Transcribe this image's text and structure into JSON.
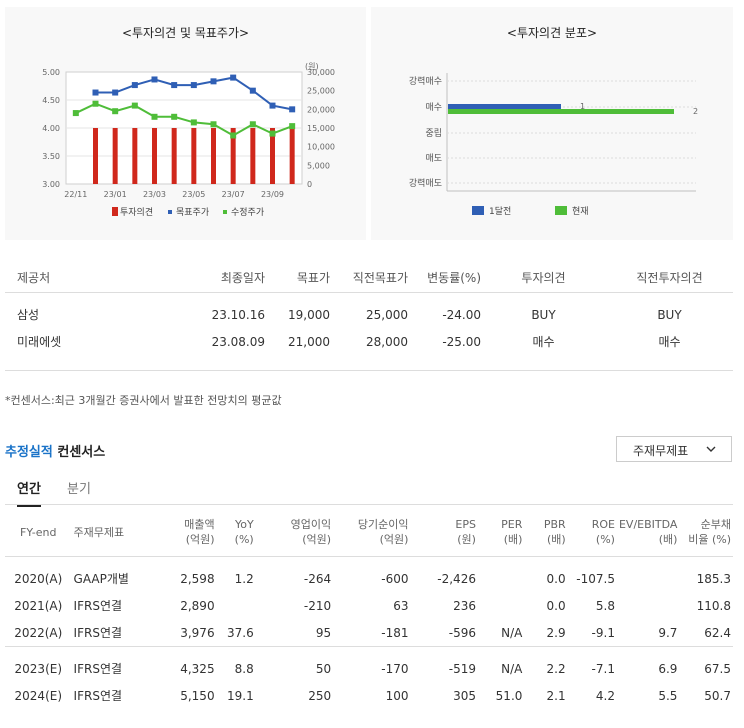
{
  "opinion_chart": {
    "title": "<투자의견 및 목표주가>",
    "y_left_ticks": [
      "5.00",
      "4.50",
      "4.00",
      "3.50",
      "3.00"
    ],
    "y_right_unit": "(원)",
    "y_right_ticks": [
      "30,000",
      "25,000",
      "20,000",
      "15,000",
      "10,000",
      "5,000",
      "0"
    ],
    "x_ticks": [
      "22/11",
      "23/01",
      "23/03",
      "23/05",
      "23/07",
      "23/09"
    ],
    "legend": [
      {
        "label": "투자의견",
        "color": "#d0281c"
      },
      {
        "label": "목표주가",
        "color": "#2f5fb5"
      },
      {
        "label": "수정주가",
        "color": "#4fbd39"
      }
    ]
  },
  "distribution_chart": {
    "title": "<투자의견 분포>",
    "categories": [
      "강력매수",
      "매수",
      "중립",
      "매도",
      "강력매도"
    ],
    "legend": [
      {
        "label": "1달전",
        "color": "#2f5fb5"
      },
      {
        "label": "현재",
        "color": "#4fbd39"
      }
    ],
    "bar_labels": [
      "1",
      "2"
    ]
  },
  "chart_data": [
    {
      "type": "bar",
      "title": "<투자의견 및 목표주가>",
      "x_ticks": [
        "22/11",
        "23/01",
        "23/03",
        "23/05",
        "23/07",
        "23/09"
      ],
      "ylim_left": [
        3.0,
        5.0
      ],
      "ylim_right": [
        0,
        30000
      ],
      "series": [
        {
          "name": "투자의견",
          "type": "bar",
          "axis": "left",
          "values": [
            null,
            4,
            4,
            4,
            4,
            4,
            4,
            4,
            4,
            4,
            4,
            4
          ]
        },
        {
          "name": "목표주가",
          "type": "line",
          "axis": "right",
          "values": [
            null,
            24500,
            24500,
            26500,
            28000,
            26500,
            26500,
            27500,
            28500,
            25000,
            21000,
            20000
          ]
        },
        {
          "name": "수정주가",
          "type": "line",
          "axis": "right",
          "values": [
            19000,
            21500,
            19500,
            21000,
            18000,
            18000,
            16500,
            16000,
            13000,
            16000,
            13500,
            15500
          ]
        }
      ]
    },
    {
      "type": "bar",
      "title": "<투자의견 분포>",
      "categories": [
        "강력매수",
        "매수",
        "중립",
        "매도",
        "강력매도"
      ],
      "series": [
        {
          "name": "1달전",
          "values": [
            0,
            1,
            0,
            0,
            0
          ]
        },
        {
          "name": "현재",
          "values": [
            0,
            2,
            0,
            0,
            0
          ]
        }
      ]
    }
  ],
  "opinions": {
    "headers": [
      "제공처",
      "최종일자",
      "목표가",
      "직전목표가",
      "변동률(%)",
      "투자의견",
      "직전투자의견"
    ],
    "rows": [
      [
        "삼성",
        "23.10.16",
        "19,000",
        "25,000",
        "-24.00",
        "BUY",
        "BUY"
      ],
      [
        "미래에셋",
        "23.08.09",
        "21,000",
        "28,000",
        "-25.00",
        "매수",
        "매수"
      ]
    ]
  },
  "note": "*컨센서스:최근 3개월간 증권사에서 발표한 전망치의 평균값",
  "section": {
    "accent": "추정실적",
    "rest": " 컨센서스"
  },
  "dropdown": {
    "label": "주재무제표",
    "chevron": "⌄"
  },
  "tabs": {
    "annual": "연간",
    "quarterly": "분기"
  },
  "financials": {
    "headers": [
      [
        "FY-end",
        ""
      ],
      [
        "주재무제표",
        ""
      ],
      [
        "매출액",
        "(억원)"
      ],
      [
        "YoY",
        "(%)"
      ],
      [
        "영업이익",
        "(억원)"
      ],
      [
        "당기순이익",
        "(억원)"
      ],
      [
        "EPS",
        "(원)"
      ],
      [
        "PER",
        "(배)"
      ],
      [
        "PBR",
        "(배)"
      ],
      [
        "ROE",
        "(%)"
      ],
      [
        "EV/EBITDA",
        "(배)"
      ],
      [
        "순부채",
        "비율 (%)"
      ]
    ],
    "rows": [
      [
        "2020(A)",
        "GAAP개별",
        "2,598",
        "1.2",
        "-264",
        "-600",
        "-2,426",
        "",
        "0.0",
        "-107.5",
        "",
        "185.3"
      ],
      [
        "2021(A)",
        "IFRS연결",
        "2,890",
        "",
        "-210",
        "63",
        "236",
        "",
        "0.0",
        "5.8",
        "",
        "110.8"
      ],
      [
        "2022(A)",
        "IFRS연결",
        "3,976",
        "37.6",
        "95",
        "-181",
        "-596",
        "N/A",
        "2.9",
        "-9.1",
        "9.7",
        "62.4"
      ],
      [
        "2023(E)",
        "IFRS연결",
        "4,325",
        "8.8",
        "50",
        "-170",
        "-519",
        "N/A",
        "2.2",
        "-7.1",
        "6.9",
        "67.5"
      ],
      [
        "2024(E)",
        "IFRS연결",
        "5,150",
        "19.1",
        "250",
        "100",
        "305",
        "51.0",
        "2.1",
        "4.2",
        "5.5",
        "50.7"
      ]
    ]
  }
}
